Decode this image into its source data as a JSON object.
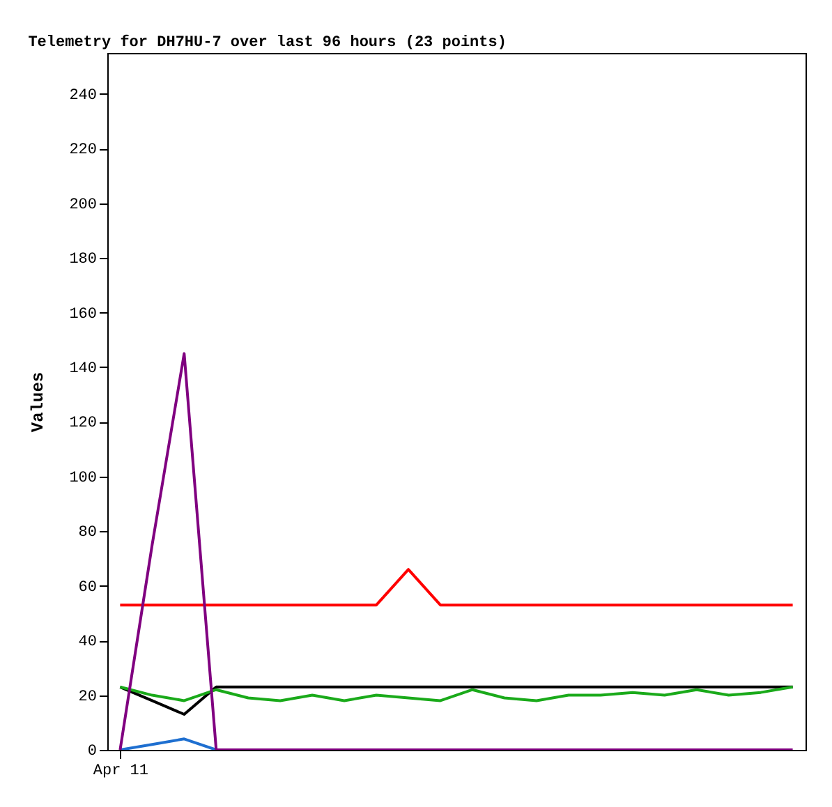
{
  "chart_data": {
    "type": "line",
    "title": "Telemetry for DH7HU-7 over last 96 hours (23 points)",
    "ylabel": "Values",
    "categories": [
      "Apr 11",
      null,
      null,
      null,
      null,
      null,
      null,
      null,
      null,
      null,
      null,
      null,
      null,
      null,
      null,
      null,
      null,
      null,
      null,
      null,
      null,
      null
    ],
    "ylim": [
      0,
      255
    ],
    "yticks": [
      0,
      20,
      40,
      60,
      80,
      100,
      120,
      140,
      160,
      180,
      200,
      220,
      240
    ],
    "grid": false,
    "marker": "none",
    "line_style": "solid",
    "series": [
      {
        "color": "#ff0000",
        "values": [
          53,
          53,
          53,
          53,
          53,
          53,
          53,
          53,
          53,
          66,
          53,
          53,
          53,
          53,
          53,
          53,
          53,
          53,
          53,
          53,
          53,
          53
        ]
      },
      {
        "color": "#000000",
        "values": [
          23,
          18,
          13,
          23,
          23,
          23,
          23,
          23,
          23,
          23,
          23,
          23,
          23,
          23,
          23,
          23,
          23,
          23,
          23,
          23,
          23,
          23
        ]
      },
      {
        "color": "#1aaa1a",
        "values": [
          23,
          20,
          18,
          22,
          19,
          18,
          20,
          18,
          20,
          19,
          18,
          22,
          19,
          18,
          20,
          20,
          21,
          20,
          22,
          20,
          21,
          23
        ]
      },
      {
        "color": "#1e6fd0",
        "values": [
          0,
          2,
          4,
          0,
          null,
          null,
          null,
          null,
          null,
          null,
          null,
          null,
          null,
          null,
          null,
          null,
          null,
          null,
          null,
          null,
          null,
          null
        ]
      },
      {
        "color": "#800080",
        "values": [
          0,
          75,
          145,
          0,
          0,
          0,
          0,
          0,
          0,
          0,
          0,
          0,
          0,
          0,
          0,
          0,
          0,
          0,
          0,
          0,
          0,
          0
        ]
      }
    ]
  }
}
